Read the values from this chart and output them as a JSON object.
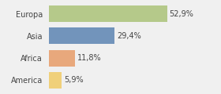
{
  "categories": [
    "Europa",
    "Asia",
    "Africa",
    "America"
  ],
  "values": [
    52.9,
    29.4,
    11.8,
    5.9
  ],
  "labels": [
    "52,9%",
    "29,4%",
    "11,8%",
    "5,9%"
  ],
  "bar_colors": [
    "#b5c98a",
    "#7294bb",
    "#e8a87c",
    "#f0d07a"
  ],
  "background_color": "#f0f0f0",
  "xlim": [
    0,
    75
  ],
  "bar_height": 0.75,
  "label_fontsize": 7,
  "category_fontsize": 7,
  "label_color": "#444444",
  "grid_color": "#ffffff",
  "border_color": "#cccccc"
}
